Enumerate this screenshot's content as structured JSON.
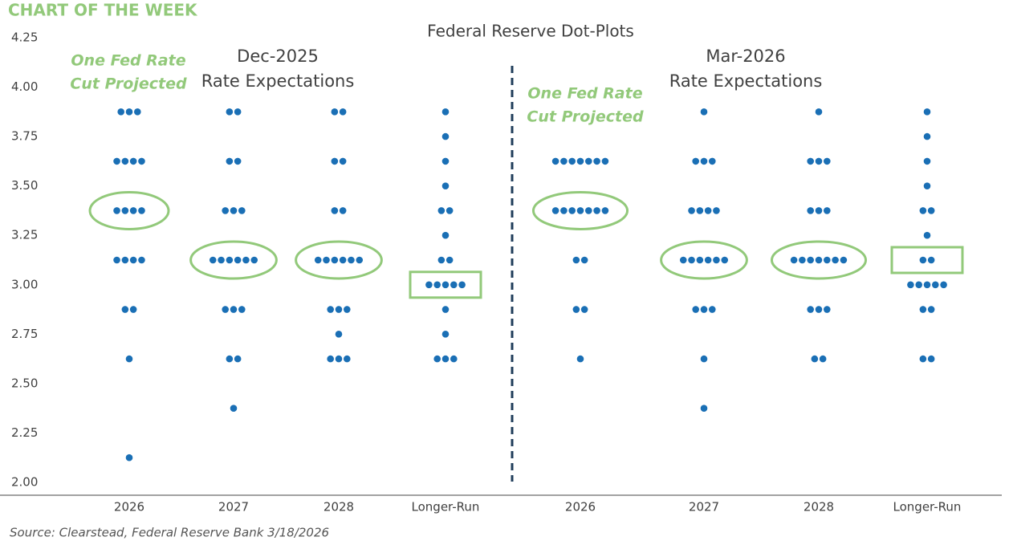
{
  "header": "CHART OF THE WEEK",
  "source": "Source: Clearstead, Federal Reserve Bank 3/18/2026",
  "chart_data": {
    "type": "dot",
    "title": "Federal Reserve Dot-Plots",
    "ylim": [
      2,
      4.25
    ],
    "yticks": [
      {
        "value": 2,
        "label": "2.00"
      },
      2.25,
      {
        "value": 2.5,
        "label": "2.50"
      },
      2.75,
      {
        "value": 3,
        "label": "3.00"
      },
      3.25,
      {
        "value": 3.5,
        "label": "3.50"
      },
      3.75,
      {
        "value": 4,
        "label": "4.00"
      },
      4.25
    ],
    "dot_color": "#1a6fb5",
    "highlight_color": "#92c97a",
    "divider_color": "#1f3c5a",
    "panels": [
      {
        "title": "Dec-2025",
        "subtitle": "Rate Expectations",
        "annotation": [
          "One Fed Rate",
          "Cut Projected"
        ],
        "categories": [
          "2026",
          "2027",
          "2028",
          "Longer-Run"
        ],
        "dots": [
          [
            3.875,
            3.875,
            3.875,
            3.625,
            3.625,
            3.625,
            3.625,
            3.375,
            3.375,
            3.375,
            3.375,
            3.125,
            3.125,
            3.125,
            3.125,
            2.875,
            2.875,
            2.625,
            2.125
          ],
          [
            3.875,
            3.875,
            3.625,
            3.625,
            3.375,
            3.375,
            3.375,
            3.125,
            3.125,
            3.125,
            3.125,
            3.125,
            3.125,
            2.875,
            2.875,
            2.875,
            2.625,
            2.625,
            2.375
          ],
          [
            3.875,
            3.875,
            3.625,
            3.625,
            3.375,
            3.375,
            3.125,
            3.125,
            3.125,
            3.125,
            3.125,
            3.125,
            2.875,
            2.875,
            2.875,
            2.75,
            2.625,
            2.625,
            2.625
          ],
          [
            3.875,
            3.75,
            3.625,
            3.5,
            3.375,
            3.375,
            3.25,
            3.125,
            3.125,
            3,
            3,
            3,
            3,
            3,
            2.875,
            2.75,
            2.625,
            2.625,
            2.625
          ]
        ],
        "highlight": [
          3.375,
          3.125,
          3.125,
          3
        ],
        "highlight_shape": [
          "ellipse",
          "ellipse",
          "ellipse",
          "box"
        ]
      },
      {
        "title": "Mar-2026",
        "subtitle": "Rate Expectations",
        "annotation": [
          "One Fed Rate",
          "Cut Projected"
        ],
        "categories": [
          "2026",
          "2027",
          "2028",
          "Longer-Run"
        ],
        "dots": [
          [
            3.625,
            3.625,
            3.625,
            3.625,
            3.625,
            3.625,
            3.625,
            3.375,
            3.375,
            3.375,
            3.375,
            3.375,
            3.375,
            3.375,
            3.125,
            3.125,
            2.875,
            2.875,
            2.625
          ],
          [
            3.875,
            3.625,
            3.625,
            3.625,
            3.375,
            3.375,
            3.375,
            3.375,
            3.125,
            3.125,
            3.125,
            3.125,
            3.125,
            3.125,
            2.875,
            2.875,
            2.875,
            2.625,
            2.375
          ],
          [
            3.875,
            3.625,
            3.625,
            3.625,
            3.375,
            3.375,
            3.375,
            3.125,
            3.125,
            3.125,
            3.125,
            3.125,
            3.125,
            3.125,
            2.875,
            2.875,
            2.875,
            2.625,
            2.625
          ],
          [
            3.875,
            3.75,
            3.625,
            3.5,
            3.375,
            3.375,
            3.25,
            3.125,
            3.125,
            3,
            3,
            3,
            3,
            3,
            2.875,
            2.875,
            2.625,
            2.625
          ]
        ],
        "highlight": [
          3.375,
          3.125,
          3.125,
          3.125
        ],
        "highlight_shape": [
          "ellipse",
          "ellipse",
          "ellipse",
          "box"
        ]
      }
    ]
  }
}
